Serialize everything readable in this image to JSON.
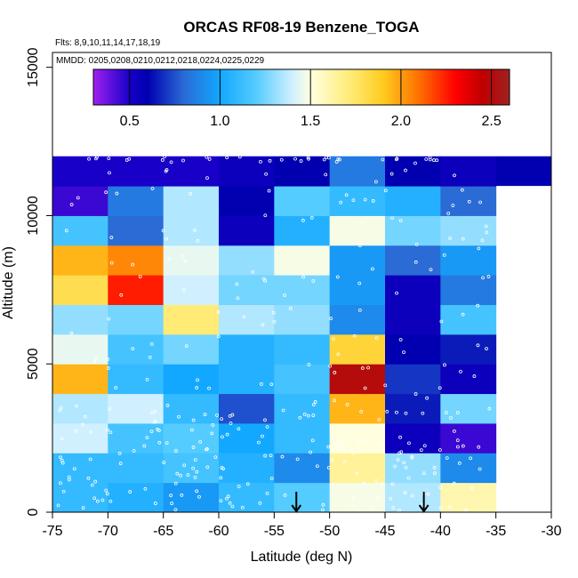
{
  "chart_data": {
    "type": "heatmap",
    "title": "ORCAS RF08-19 Benzene_TOGA",
    "flights_note": "Flts: 8,9,10,11,14,17,18,19",
    "dates_note": "MMDD: 0205,0208,0210,0212,0218,0224,0225,0229",
    "xlabel": "Latitude (deg N)",
    "ylabel": "Altitude (m)",
    "xlim": [
      -75,
      -30
    ],
    "ylim": [
      0,
      15500
    ],
    "x_ticks": [
      -75,
      -70,
      -65,
      -60,
      -55,
      -50,
      -45,
      -40,
      -35,
      -30
    ],
    "x_tick_labels": [
      "-75",
      "-70",
      "-65",
      "-60",
      "-55",
      "-50",
      "-45",
      "-40",
      "-35",
      "-30"
    ],
    "y_ticks": [
      0,
      5000,
      10000,
      15000
    ],
    "y_tick_labels": [
      "0",
      "5000",
      "10000",
      "15000"
    ],
    "colorbar": {
      "range": [
        0.3,
        2.6
      ],
      "ticks": [
        0.5,
        1.0,
        1.5,
        2.0,
        2.5
      ],
      "tick_labels": [
        "0.5",
        "1.0",
        "1.5",
        "2.0",
        "2.5"
      ],
      "stops": [
        {
          "v": 0.3,
          "color": "#a020f0"
        },
        {
          "v": 0.5,
          "color": "#1800c8"
        },
        {
          "v": 0.6,
          "color": "#0000b0"
        },
        {
          "v": 0.8,
          "color": "#2a6bd6"
        },
        {
          "v": 1.0,
          "color": "#12a8ff"
        },
        {
          "v": 1.2,
          "color": "#55ccff"
        },
        {
          "v": 1.4,
          "color": "#d0f0ff"
        },
        {
          "v": 1.5,
          "color": "#ffffe0"
        },
        {
          "v": 1.7,
          "color": "#ffee80"
        },
        {
          "v": 1.9,
          "color": "#ffcc20"
        },
        {
          "v": 2.1,
          "color": "#ff7000"
        },
        {
          "v": 2.3,
          "color": "#ff0000"
        },
        {
          "v": 2.45,
          "color": "#c00000"
        },
        {
          "v": 2.6,
          "color": "#a02020"
        }
      ]
    },
    "lat_bins": [
      -75,
      -70,
      -65,
      -60,
      -55,
      -50,
      -45,
      -40,
      -35
    ],
    "alt_bins": [
      0,
      1000,
      2000,
      3000,
      4000,
      5000,
      6000,
      7000,
      8000,
      9000,
      10000,
      11000,
      12000
    ],
    "grid_values": [
      [
        1.1,
        1.05,
        0.95,
        1.1,
        1.2,
        1.48,
        1.35,
        1.6
      ],
      [
        1.1,
        1.1,
        1.15,
        1.05,
        0.9,
        1.65,
        1.3,
        0.9
      ],
      [
        1.4,
        1.15,
        1.2,
        1.0,
        1.1,
        1.5,
        0.55,
        0.45
      ],
      [
        1.35,
        1.4,
        1.1,
        0.75,
        1.1,
        1.95,
        0.65,
        1.25
      ],
      [
        1.95,
        1.1,
        1.0,
        1.05,
        1.15,
        2.5,
        0.7,
        0.55
      ],
      [
        1.45,
        1.15,
        1.25,
        1.05,
        1.1,
        1.85,
        0.6,
        0.65
      ],
      [
        1.3,
        1.25,
        1.72,
        1.35,
        1.3,
        0.9,
        0.55,
        1.15
      ],
      [
        1.8,
        2.25,
        1.4,
        1.25,
        1.25,
        0.95,
        0.55,
        0.85
      ],
      [
        1.95,
        2.05,
        1.45,
        1.3,
        1.48,
        0.95,
        0.8,
        0.95
      ],
      [
        1.15,
        0.8,
        1.35,
        0.55,
        1.05,
        1.48,
        1.25,
        1.3
      ],
      [
        0.45,
        0.85,
        1.35,
        0.6,
        1.2,
        1.1,
        1.05,
        0.8
      ],
      [
        0.5,
        0.5,
        0.5,
        0.55,
        0.6,
        0.85,
        0.6,
        0.55
      ]
    ],
    "top_band": {
      "alt_range": [
        11000,
        12000
      ],
      "lat_range": [
        -35,
        -30
      ],
      "value": 0.6
    },
    "markers": [
      {
        "type": "arrow-down",
        "lat": -53,
        "alt": 600
      },
      {
        "type": "arrow-down",
        "lat": -41.5,
        "alt": 600
      }
    ],
    "sample_points_note": "individual sample locations drawn as small white circles"
  }
}
